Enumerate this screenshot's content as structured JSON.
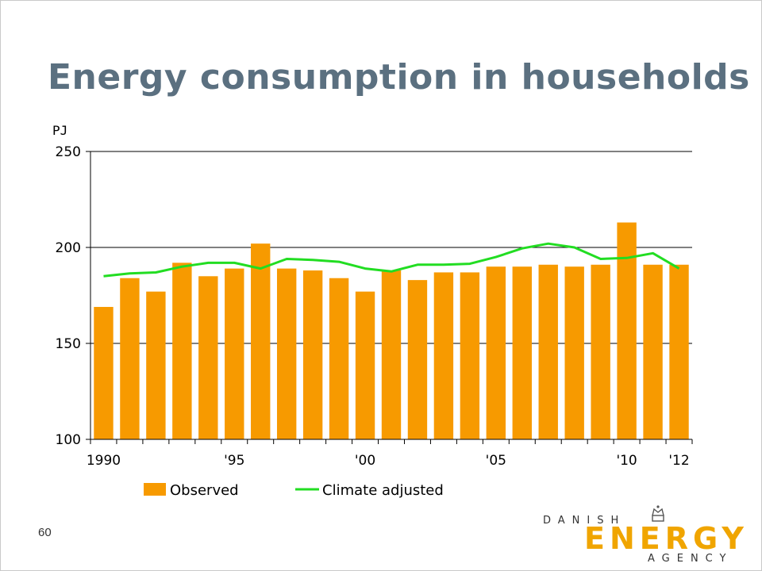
{
  "slide": {
    "title": "Energy consumption in households",
    "page_number": "60"
  },
  "logo": {
    "top": "DANISH",
    "middle": "ENERGY",
    "bottom": "AGENCY",
    "color": "#f0a500"
  },
  "colors": {
    "bars": "#f79a00",
    "line": "#22dd22",
    "title": "#5b7080"
  },
  "chart_data": {
    "type": "bar",
    "unit_label": "PJ",
    "ylim": [
      100,
      250
    ],
    "yticks": [
      100,
      150,
      200,
      250
    ],
    "grid": true,
    "legend_position": "bottom",
    "x": [
      1990,
      1991,
      1992,
      1993,
      1994,
      1995,
      1996,
      1997,
      1998,
      1999,
      2000,
      2001,
      2002,
      2003,
      2004,
      2005,
      2006,
      2007,
      2008,
      2009,
      2010,
      2011,
      2012
    ],
    "x_tick_labels": [
      "1990",
      "'95",
      "'00",
      "'05",
      "'10",
      "'12"
    ],
    "x_tick_years": [
      1990,
      1995,
      2000,
      2005,
      2010,
      2012
    ],
    "series": [
      {
        "name": "Observed",
        "type": "bar",
        "values": [
          169,
          184,
          177,
          192,
          185,
          189,
          202,
          189,
          188,
          184,
          177,
          188,
          183,
          187,
          187,
          190,
          190,
          191,
          190,
          191,
          213,
          191,
          191
        ]
      },
      {
        "name": "Climate adjusted",
        "type": "line",
        "values": [
          185,
          186.5,
          187,
          190,
          192,
          192,
          189,
          194,
          193.5,
          192.5,
          189,
          187.5,
          191,
          191,
          191.5,
          195,
          199.5,
          202,
          200,
          194,
          194.5,
          197,
          189
        ]
      }
    ]
  }
}
